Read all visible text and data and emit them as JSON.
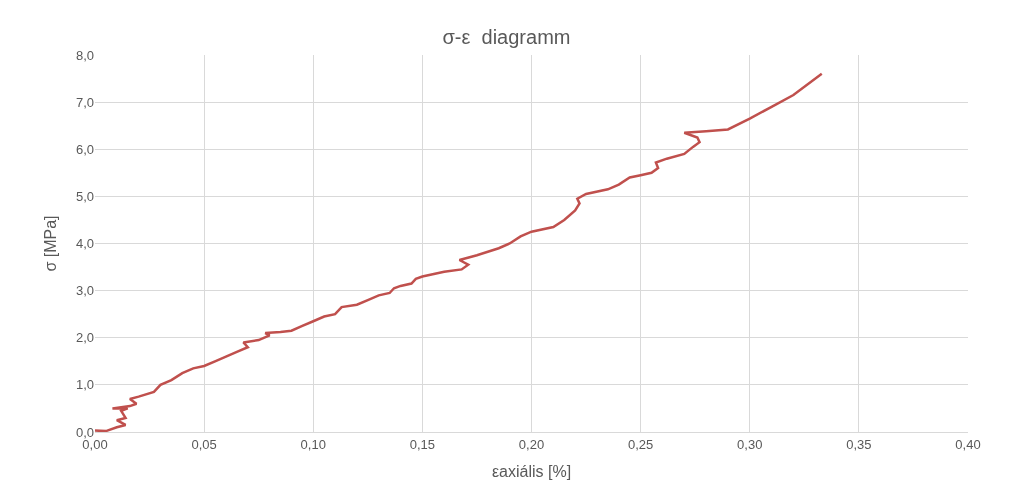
{
  "chart_data": {
    "type": "line",
    "title": "σ-ε  diagramm",
    "xlabel": "εaxiális [%]",
    "ylabel": "σ [MPa]",
    "xlim": [
      0,
      0.4
    ],
    "ylim": [
      0,
      8
    ],
    "xticks": [
      {
        "value": 0,
        "label": "0,00"
      },
      {
        "value": 0.05,
        "label": "0,05"
      },
      {
        "value": 0.1,
        "label": "0,10"
      },
      {
        "value": 0.15,
        "label": "0,15"
      },
      {
        "value": 0.2,
        "label": "0,20"
      },
      {
        "value": 0.25,
        "label": "0,25"
      },
      {
        "value": 0.3,
        "label": "0,30"
      },
      {
        "value": 0.35,
        "label": "0,35"
      },
      {
        "value": 0.4,
        "label": "0,40"
      }
    ],
    "yticks": [
      {
        "value": 0,
        "label": "0,0"
      },
      {
        "value": 1,
        "label": "1,0"
      },
      {
        "value": 2,
        "label": "2,0"
      },
      {
        "value": 3,
        "label": "3,0"
      },
      {
        "value": 4,
        "label": "4,0"
      },
      {
        "value": 5,
        "label": "5,0"
      },
      {
        "value": 6,
        "label": "6,0"
      },
      {
        "value": 7,
        "label": "7,0"
      },
      {
        "value": 8,
        "label": "8,0"
      }
    ],
    "grid": true,
    "marker": "none",
    "line_style": "solid",
    "series": [
      {
        "color": "#c0504d",
        "x": [
          0.0,
          0.005,
          0.01,
          0.014,
          0.01,
          0.014,
          0.012,
          0.015,
          0.008,
          0.016,
          0.019,
          0.016,
          0.02,
          0.027,
          0.03,
          0.035,
          0.04,
          0.045,
          0.05,
          0.055,
          0.06,
          0.065,
          0.07,
          0.068,
          0.075,
          0.08,
          0.078,
          0.085,
          0.09,
          0.095,
          0.1,
          0.105,
          0.11,
          0.113,
          0.12,
          0.125,
          0.13,
          0.135,
          0.137,
          0.14,
          0.145,
          0.147,
          0.15,
          0.16,
          0.168,
          0.171,
          0.167,
          0.175,
          0.185,
          0.19,
          0.195,
          0.2,
          0.21,
          0.215,
          0.22,
          0.222,
          0.221,
          0.225,
          0.235,
          0.24,
          0.245,
          0.25,
          0.255,
          0.258,
          0.257,
          0.262,
          0.27,
          0.274,
          0.277,
          0.276,
          0.27,
          0.28,
          0.29,
          0.3,
          0.31,
          0.32,
          0.333
        ],
        "values": [
          0.03,
          0.02,
          0.1,
          0.15,
          0.25,
          0.3,
          0.45,
          0.5,
          0.5,
          0.55,
          0.6,
          0.7,
          0.75,
          0.85,
          1.0,
          1.1,
          1.25,
          1.35,
          1.4,
          1.5,
          1.6,
          1.7,
          1.8,
          1.9,
          1.95,
          2.05,
          2.1,
          2.12,
          2.15,
          2.25,
          2.35,
          2.45,
          2.5,
          2.65,
          2.7,
          2.8,
          2.9,
          2.95,
          3.05,
          3.1,
          3.15,
          3.25,
          3.3,
          3.4,
          3.45,
          3.55,
          3.65,
          3.75,
          3.9,
          4.0,
          4.15,
          4.25,
          4.35,
          4.5,
          4.7,
          4.85,
          4.95,
          5.05,
          5.15,
          5.25,
          5.4,
          5.45,
          5.5,
          5.6,
          5.72,
          5.8,
          5.9,
          6.05,
          6.15,
          6.25,
          6.35,
          6.38,
          6.42,
          6.65,
          6.9,
          7.15,
          7.6
        ]
      }
    ]
  }
}
